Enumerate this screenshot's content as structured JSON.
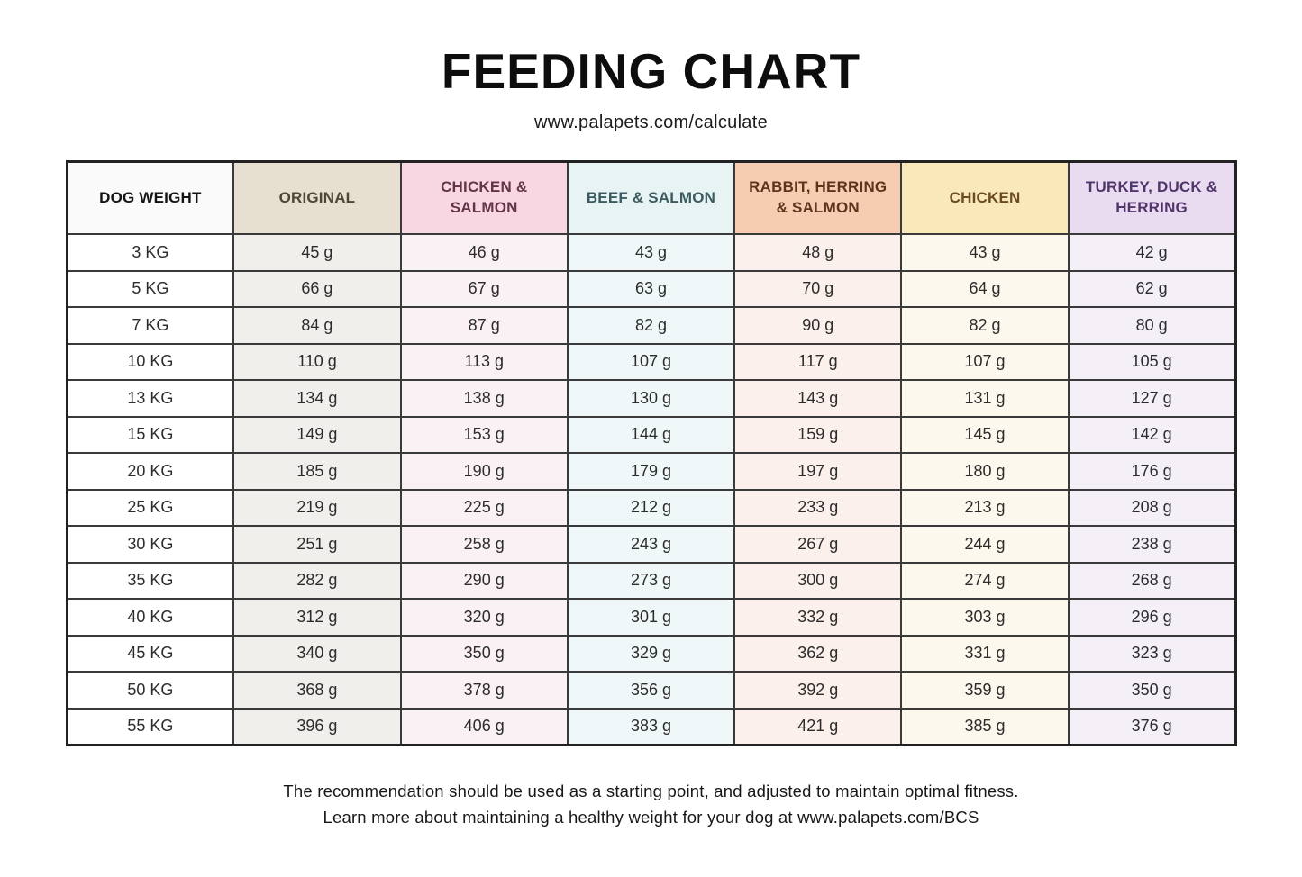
{
  "page": {
    "title": "FEEDING CHART",
    "subtitle": "www.palapets.com/calculate",
    "footer_line1": "The recommendation should be used as a starting point, and adjusted to maintain optimal fitness.",
    "footer_line2": "Learn more about maintaining a healthy weight for your dog at www.palapets.com/BCS"
  },
  "chart_data": {
    "type": "table",
    "title": "FEEDING CHART",
    "columns": [
      {
        "label": "DOG WEIGHT",
        "header_bg": "#fafafa",
        "header_text": "#141414",
        "cell_bg": "#ffffff"
      },
      {
        "label": "ORIGINAL",
        "header_bg": "#e7e0d1",
        "header_text": "#4e4437",
        "cell_bg": "#f1efeb"
      },
      {
        "label": "CHICKEN & SALMON",
        "header_bg": "#f8d7e2",
        "header_text": "#633548",
        "cell_bg": "#faf1f4"
      },
      {
        "label": "BEEF & SALMON",
        "header_bg": "#e8f3f4",
        "header_text": "#3c5b60",
        "cell_bg": "#eff7f8"
      },
      {
        "label": "RABBIT, HERRING & SALMON",
        "header_bg": "#f7cdb2",
        "header_text": "#5e351c",
        "cell_bg": "#fbf0eb"
      },
      {
        "label": "CHICKEN",
        "header_bg": "#f9e8ba",
        "header_text": "#6b4b22",
        "cell_bg": "#fdf8ed"
      },
      {
        "label": "TURKEY, DUCK & HERRING",
        "header_bg": "#e9dcf1",
        "header_text": "#51356a",
        "cell_bg": "#f5f0f8"
      }
    ],
    "weight_unit": "KG",
    "amount_unit": "g",
    "rows": [
      [
        "3 KG",
        "45 g",
        "46 g",
        "43 g",
        "48 g",
        "43 g",
        "42 g"
      ],
      [
        "5 KG",
        "66 g",
        "67 g",
        "63 g",
        "70 g",
        "64 g",
        "62 g"
      ],
      [
        "7 KG",
        "84 g",
        "87 g",
        "82 g",
        "90 g",
        "82 g",
        "80 g"
      ],
      [
        "10 KG",
        "110 g",
        "113 g",
        "107 g",
        "117 g",
        "107 g",
        "105 g"
      ],
      [
        "13 KG",
        "134 g",
        "138 g",
        "130 g",
        "143 g",
        "131 g",
        "127 g"
      ],
      [
        "15 KG",
        "149 g",
        "153 g",
        "144 g",
        "159 g",
        "145 g",
        "142 g"
      ],
      [
        "20 KG",
        "185 g",
        "190 g",
        "179 g",
        "197 g",
        "180 g",
        "176 g"
      ],
      [
        "25 KG",
        "219 g",
        "225 g",
        "212 g",
        "233 g",
        "213 g",
        "208 g"
      ],
      [
        "30 KG",
        "251 g",
        "258 g",
        "243 g",
        "267 g",
        "244 g",
        "238 g"
      ],
      [
        "35 KG",
        "282 g",
        "290 g",
        "273 g",
        "300 g",
        "274 g",
        "268 g"
      ],
      [
        "40 KG",
        "312 g",
        "320 g",
        "301 g",
        "332 g",
        "303 g",
        "296 g"
      ],
      [
        "45 KG",
        "340 g",
        "350 g",
        "329 g",
        "362 g",
        "331 g",
        "323 g"
      ],
      [
        "50 KG",
        "368 g",
        "378 g",
        "356 g",
        "392 g",
        "359 g",
        "350 g"
      ],
      [
        "55 KG",
        "396 g",
        "406 g",
        "383 g",
        "421 g",
        "385 g",
        "376 g"
      ]
    ]
  }
}
